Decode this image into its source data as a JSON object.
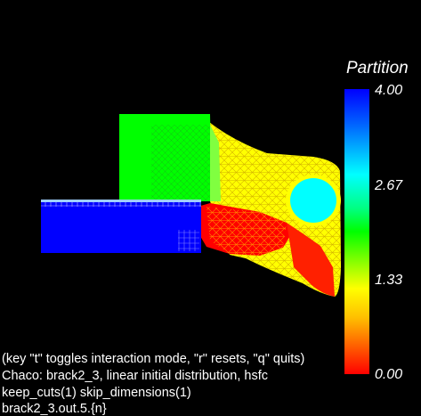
{
  "legend": {
    "title": "Partition",
    "ticks": [
      "4.00",
      "2.67",
      "1.33",
      "0.00"
    ]
  },
  "status_lines": [
    "(key \"t\" toggles interaction mode, \"r\" resets, \"q\" quits)",
    "Chaco: brack2_3, linear initial distribution, hsfc",
    "keep_cuts(1) skip_dimensions(1)",
    "brack2_3.out.5.{n}"
  ],
  "colors": {
    "background": "#000000",
    "partition_0": "#ff0000",
    "partition_1": "#ffff00",
    "partition_2": "#00ff00",
    "partition_3": "#00ffff",
    "partition_4": "#0000ff"
  }
}
